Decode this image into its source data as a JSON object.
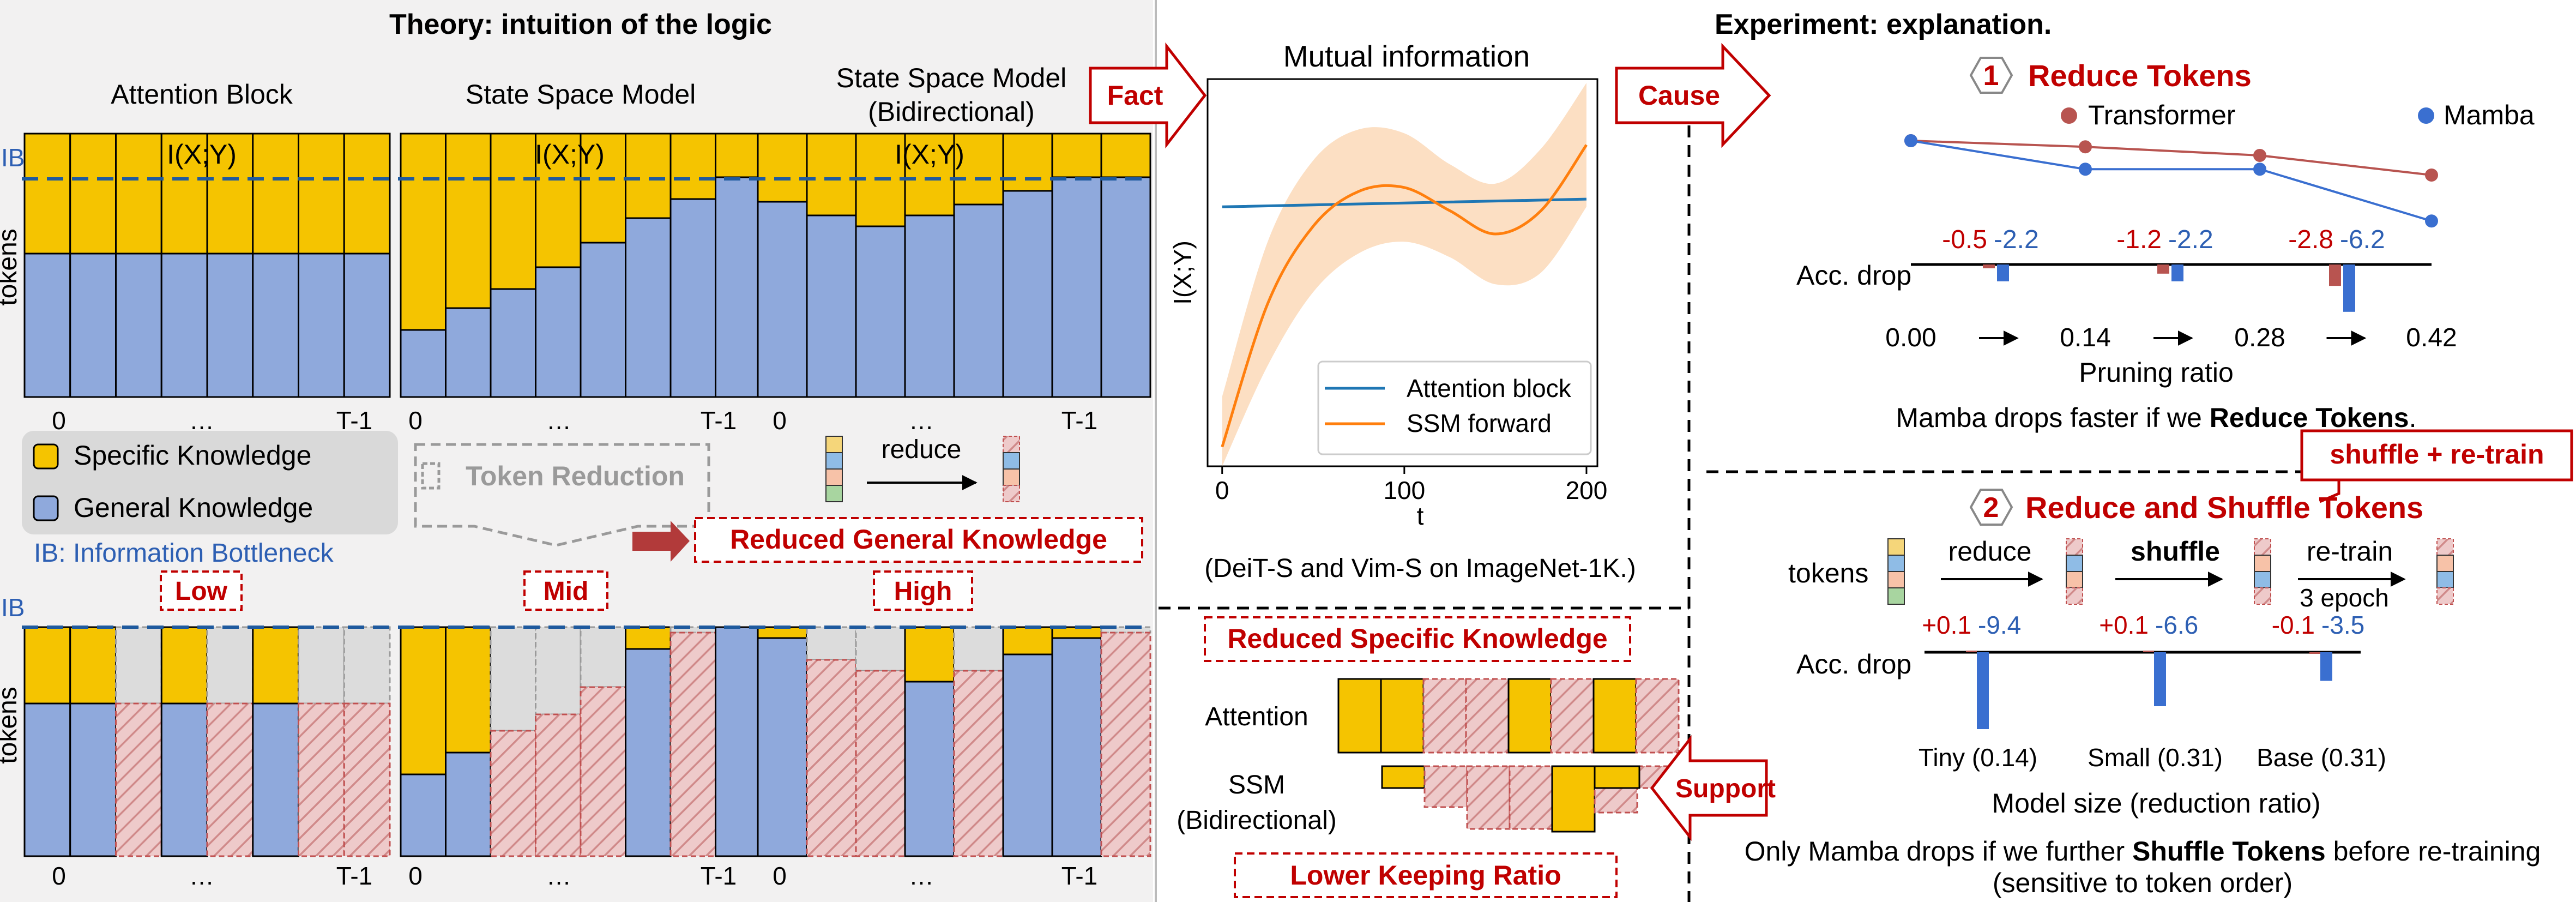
{
  "theory": {
    "title": "Theory: intuition of the logic",
    "col1": "Attention Block",
    "col2": "State Space Model",
    "col3a": "State Space Model",
    "col3b": "(Bidirectional)",
    "ixy": "I(X;Y)",
    "ib": "IB",
    "tokens": "tokens",
    "x_start": "0",
    "x_dots": "…",
    "x_end": "T-1",
    "legend_specific": "Specific Knowledge",
    "legend_general": "General Knowledge",
    "ib_note": "IB: Information Bottleneck",
    "token_reduction": "Token Reduction",
    "reduce": "reduce",
    "reduced_general": "Reduced General Knowledge",
    "low": "Low",
    "mid": "Mid",
    "high": "High",
    "colors": {
      "specific": "#f5c400",
      "general": "#8fa9dc",
      "reduced": "#e8b4b4",
      "bg": "#f2f1f1"
    }
  },
  "middle": {
    "fact": "Fact",
    "cause": "Cause",
    "support": "Support",
    "dataset_note": "(DeiT-S and Vim-S on ImageNet-1K.)",
    "reduced_specific": "Reduced Specific Knowledge",
    "attention": "Attention",
    "ssm": "SSM",
    "bidirectional": "(Bidirectional)",
    "lower_keeping": "Lower Keeping Ratio"
  },
  "mi_chart": {
    "chart_data": {
      "type": "line",
      "title": "Mutual information",
      "xlabel": "t",
      "ylabel": "I(X;Y)",
      "xlim": [
        -8,
        206
      ],
      "xticks": [
        "0",
        "100",
        "200"
      ],
      "series": [
        {
          "name": "Attention block",
          "color": "#1f77b4",
          "x": [
            0,
            200
          ],
          "y": [
            0.67,
            0.69
          ]
        },
        {
          "name": "SSM forward",
          "color": "#ff7f0e",
          "x": [
            0,
            25,
            50,
            75,
            100,
            125,
            150,
            175,
            200
          ],
          "y": [
            0.05,
            0.42,
            0.62,
            0.71,
            0.72,
            0.66,
            0.6,
            0.66,
            0.83
          ],
          "band": [
            0.13,
            0.16,
            0.17,
            0.16,
            0.14,
            0.12,
            0.13,
            0.16,
            0.16
          ]
        }
      ]
    }
  },
  "experiment": {
    "title": "Experiment: explanation.",
    "n1": "1",
    "reduce_tokens": "Reduce Tokens",
    "transformer": "Transformer",
    "mamba": "Mamba",
    "acc_drop": "Acc. drop",
    "pruning_ratio": "Pruning ratio",
    "caption1_pre": "Mamba drops faster if we ",
    "caption1_bold": "Reduce Tokens",
    "caption1_post": ".",
    "shuffle_retrain": "shuffle + re-train",
    "n2": "2",
    "reduce_shuffle": "Reduce and Shuffle Tokens",
    "tokens": "tokens",
    "reduce": "reduce",
    "shuffle": "shuffle",
    "retrain": "re-train",
    "epochs": "3 epoch",
    "model_size": "Model size (reduction ratio)",
    "caption2_pre": "Only Mamba drops if we further ",
    "caption2_bold": "Shuffle Tokens",
    "caption2_post": " before re-training",
    "caption2_line2": "(sensitive to token order)",
    "colors": {
      "transformer": "#b85450",
      "mamba": "#3a6fd0",
      "red_label": "#c00000"
    },
    "chart_data": [
      {
        "type": "line",
        "name": "pruning",
        "x": [
          0.0,
          0.14,
          0.28,
          0.42
        ],
        "x_labels": [
          "0.00",
          "0.14",
          "0.28",
          "0.42"
        ],
        "series": [
          {
            "name": "Transformer",
            "values": [
              0.0,
              -0.5,
              -1.2,
              -2.8
            ]
          },
          {
            "name": "Mamba",
            "values": [
              0.0,
              -2.2,
              -2.2,
              -6.2
            ]
          }
        ],
        "drop_labels": [
          {
            "transformer": "-0.5",
            "mamba": "-2.2"
          },
          {
            "transformer": "-1.2",
            "mamba": "-2.2"
          },
          {
            "transformer": "-2.8",
            "mamba": "-6.2"
          }
        ],
        "drops_transformer": [
          -0.5,
          -1.2,
          -2.8
        ],
        "drops_mamba": [
          -2.2,
          -2.2,
          -6.2
        ]
      },
      {
        "type": "bar",
        "name": "shuffle",
        "categories": [
          "Tiny (0.14)",
          "Small (0.31)",
          "Base (0.31)"
        ],
        "series": [
          {
            "name": "Transformer",
            "values": [
              0.1,
              0.1,
              -0.1
            ]
          },
          {
            "name": "Mamba",
            "values": [
              -9.4,
              -6.6,
              -3.5
            ]
          }
        ],
        "labels": [
          {
            "transformer": "+0.1",
            "mamba": "-9.4"
          },
          {
            "transformer": "+0.1",
            "mamba": "-6.6"
          },
          {
            "transformer": "-0.1",
            "mamba": "-3.5"
          }
        ]
      }
    ]
  }
}
